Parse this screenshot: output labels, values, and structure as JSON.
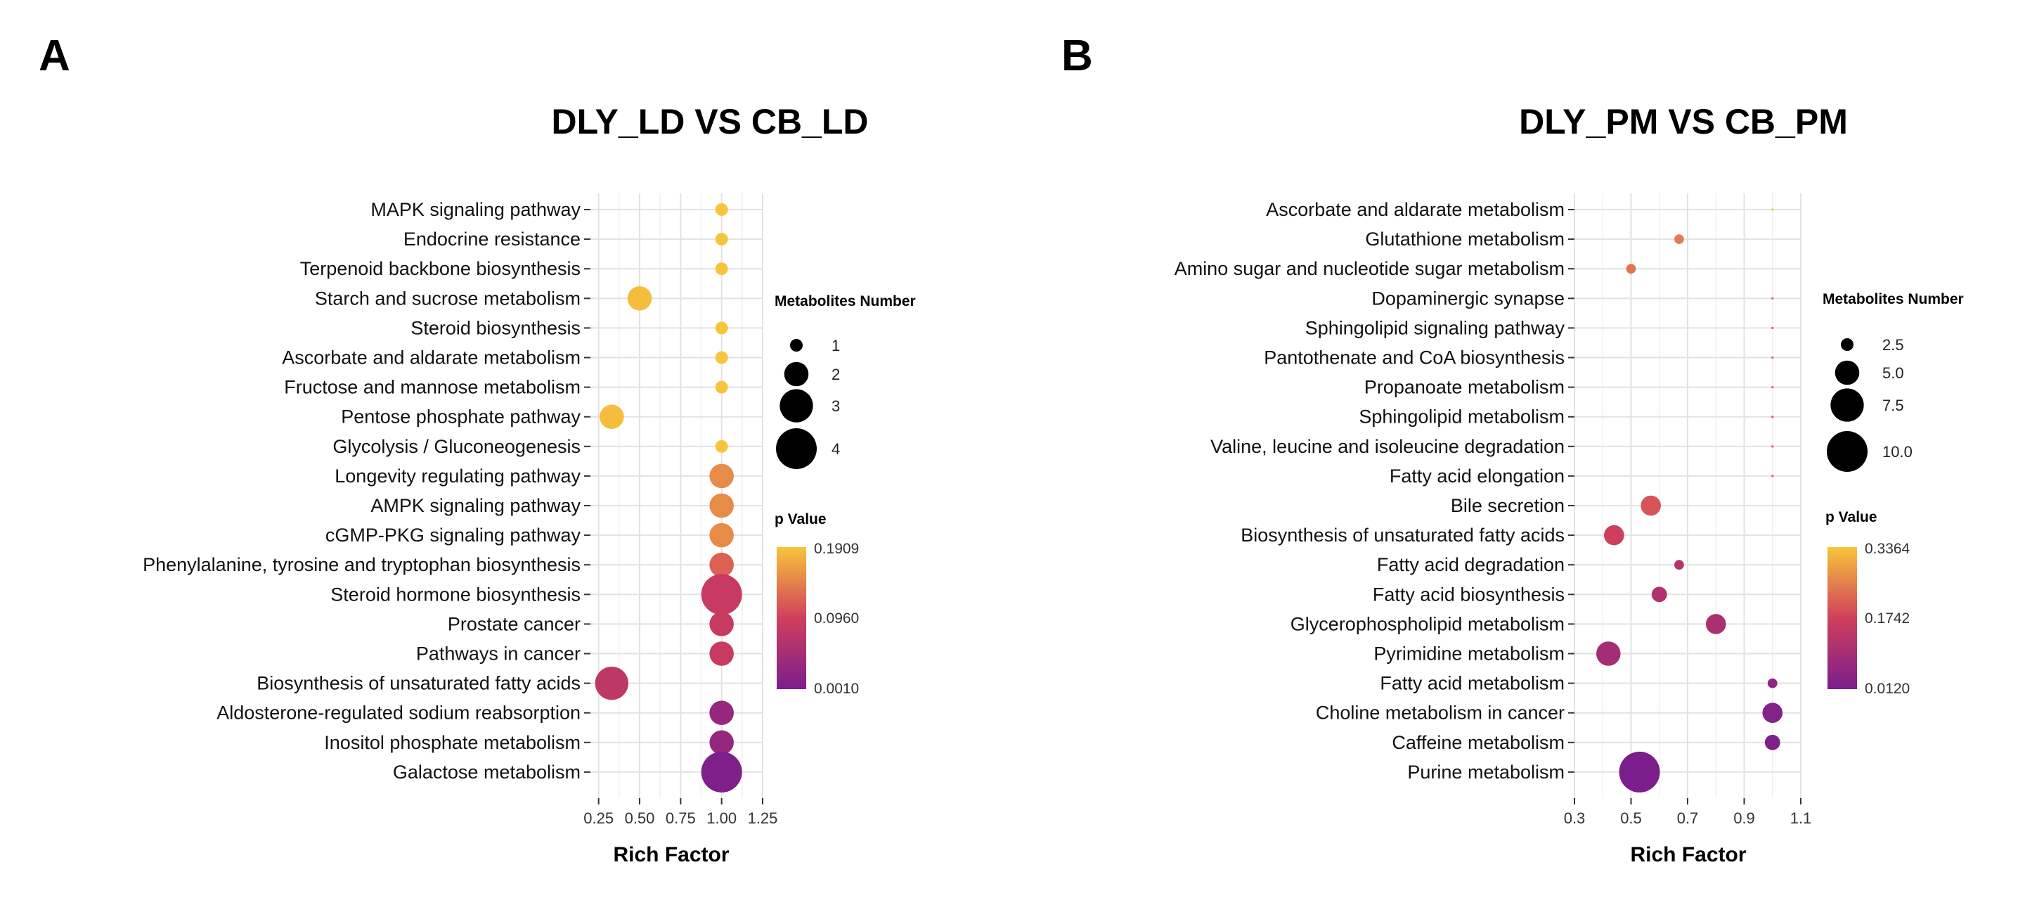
{
  "panels": [
    {
      "label": "A"
    },
    {
      "label": "B"
    }
  ],
  "chart_data": [
    {
      "type": "scatter",
      "title": "DLY_LD VS CB_LD",
      "xlabel": "Rich Factor",
      "ylabel": "",
      "xlim": [
        0.2,
        1.25
      ],
      "xticks": [
        0.25,
        0.5,
        0.75,
        1.0,
        1.25
      ],
      "xtick_labels": [
        "0.25",
        "0.50",
        "0.75",
        "1.00",
        "1.25"
      ],
      "grid": true,
      "categories": [
        "MAPK signaling pathway",
        "Endocrine resistance",
        "Terpenoid backbone biosynthesis",
        "Starch and sucrose metabolism",
        "Steroid biosynthesis",
        "Ascorbate and aldarate metabolism",
        "Fructose and mannose metabolism",
        "Pentose phosphate pathway",
        "Glycolysis / Gluconeogenesis",
        "Longevity regulating pathway",
        "AMPK signaling pathway",
        "cGMP-PKG signaling pathway",
        "Phenylalanine, tyrosine and tryptophan biosynthesis",
        "Steroid hormone biosynthesis",
        "Prostate cancer",
        "Pathways in cancer",
        "Biosynthesis of unsaturated fatty acids",
        "Aldosterone-regulated sodium reabsorption",
        "Inositol phosphate metabolism",
        "Galactose metabolism"
      ],
      "rich_factor": [
        1.0,
        1.0,
        1.0,
        0.5,
        1.0,
        1.0,
        1.0,
        0.33,
        1.0,
        1.0,
        1.0,
        1.0,
        1.0,
        1.0,
        1.0,
        1.0,
        0.33,
        1.0,
        1.0,
        1.0
      ],
      "metabolites_number": [
        1,
        1,
        1,
        2,
        1,
        1,
        1,
        2,
        1,
        2,
        2,
        2,
        2,
        4,
        2,
        2,
        3,
        2,
        2,
        4
      ],
      "p_value": [
        0.1909,
        0.1909,
        0.1909,
        0.185,
        0.1909,
        0.1909,
        0.1909,
        0.185,
        0.1909,
        0.15,
        0.15,
        0.15,
        0.12,
        0.085,
        0.085,
        0.085,
        0.075,
        0.03,
        0.03,
        0.004
      ],
      "size_legend": {
        "title": "Metabolites Number",
        "values": [
          1,
          2,
          3,
          4
        ],
        "labels": [
          "1",
          "2",
          "3",
          "4"
        ]
      },
      "color_legend": {
        "title": "p Value",
        "min": 0.001,
        "mid": 0.096,
        "max": 0.1909,
        "labels": [
          "0.1909",
          "0.0960",
          "0.0010"
        ]
      },
      "colors": {
        "low": "#7b1e8c",
        "mid": "#d13f5c",
        "high": "#f7c53a"
      }
    },
    {
      "type": "scatter",
      "title": "DLY_PM VS CB_PM",
      "xlabel": "Rich Factor",
      "ylabel": "",
      "xlim": [
        0.3,
        1.1
      ],
      "xticks": [
        0.3,
        0.5,
        0.7,
        0.9,
        1.1
      ],
      "xtick_labels": [
        "0.3",
        "0.5",
        "0.7",
        "0.9",
        "1.1"
      ],
      "grid": true,
      "categories": [
        "Ascorbate and aldarate metabolism",
        "Glutathione metabolism",
        "Amino sugar and nucleotide sugar metabolism",
        "Dopaminergic synapse",
        "Sphingolipid signaling pathway",
        "Pantothenate and CoA biosynthesis",
        "Propanoate metabolism",
        "Sphingolipid metabolism",
        "Valine, leucine and isoleucine degradation",
        "Fatty acid elongation",
        "Bile secretion",
        "Biosynthesis of unsaturated fatty acids",
        "Fatty acid degradation",
        "Fatty acid biosynthesis",
        "Glycerophospholipid metabolism",
        "Pyrimidine metabolism",
        "Fatty acid metabolism",
        "Choline metabolism in cancer",
        "Caffeine metabolism",
        "Purine metabolism"
      ],
      "rich_factor": [
        1.0,
        0.67,
        0.5,
        1.0,
        1.0,
        1.0,
        1.0,
        1.0,
        1.0,
        1.0,
        0.57,
        0.44,
        0.67,
        0.6,
        0.8,
        0.42,
        1.0,
        1.0,
        1.0,
        0.53
      ],
      "metabolites_number": [
        1,
        2,
        2,
        1,
        1,
        1,
        1,
        1,
        1,
        1,
        4,
        4,
        2,
        3,
        4,
        5,
        2,
        4,
        3,
        10
      ],
      "p_value": [
        0.3364,
        0.25,
        0.24,
        0.22,
        0.22,
        0.22,
        0.22,
        0.22,
        0.22,
        0.22,
        0.2,
        0.17,
        0.12,
        0.11,
        0.1,
        0.09,
        0.05,
        0.03,
        0.02,
        0.012
      ],
      "size_legend": {
        "title": "Metabolites Number",
        "values": [
          2.5,
          5.0,
          7.5,
          10.0
        ],
        "labels": [
          "2.5",
          "5.0",
          "7.5",
          "10.0"
        ]
      },
      "color_legend": {
        "title": "p Value",
        "min": 0.012,
        "mid": 0.1742,
        "max": 0.3364,
        "labels": [
          "0.3364",
          "0.1742",
          "0.0120"
        ]
      },
      "colors": {
        "low": "#7b1e8c",
        "mid": "#d13f5c",
        "high": "#f7c53a"
      }
    }
  ]
}
